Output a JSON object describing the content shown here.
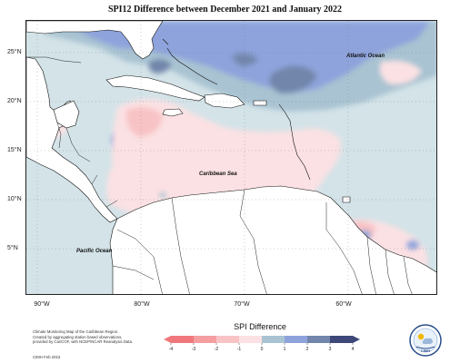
{
  "title": "SPI12 Difference between December 2021 and January 2022",
  "map": {
    "latitude_labels": [
      "25°N",
      "20°N",
      "15°N",
      "10°N",
      "5°N"
    ],
    "longitude_labels": [
      "90°W",
      "80°W",
      "70°W",
      "60°W"
    ],
    "place_labels": {
      "atlantic": "Atlantic Ocean",
      "caribbean": "Caribbean Sea",
      "pacific": "Pacific Ocean"
    },
    "extent": {
      "lon_min": -93,
      "lon_max": -53,
      "lat_min": 0,
      "lat_max": 28
    }
  },
  "legend": {
    "title": "SPI Difference",
    "ticks": [
      "-4",
      "-3",
      "-2",
      "-1",
      "0",
      "1",
      "2",
      "3",
      "4"
    ],
    "colors": {
      "neg4": "#f0787c",
      "neg3": "#f59ea0",
      "neg2": "#f8c3c5",
      "neg1": "#fbe1e3",
      "pos0": "#d3e3e8",
      "pos1": "#a9c3d2",
      "pos2": "#8ea3dc",
      "pos3": "#7286ab",
      "pos4": "#3d4778"
    }
  },
  "credits": {
    "lines": [
      "Climate Monitoring Map of the Caribbean Region.",
      "Created by aggregating station based observations,",
      "provided by CariCOF, with NCEP/NCAR Reanalysis Data."
    ],
    "date": "CIMH Feb 2022"
  },
  "logo": {
    "text": "CIMH"
  }
}
